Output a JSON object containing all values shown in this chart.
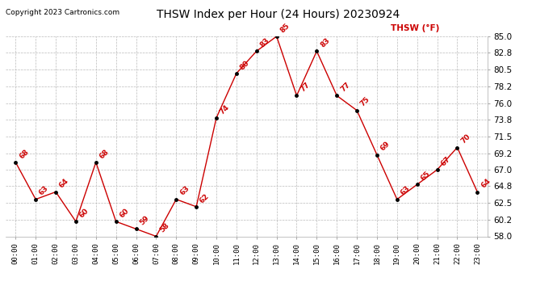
{
  "title": "THSW Index per Hour (24 Hours) 20230924",
  "copyright": "Copyright 2023 Cartronics.com",
  "legend_label": "THSW (°F)",
  "hours": [
    "00:00",
    "01:00",
    "02:00",
    "03:00",
    "04:00",
    "05:00",
    "06:00",
    "07:00",
    "08:00",
    "09:00",
    "10:00",
    "11:00",
    "12:00",
    "13:00",
    "14:00",
    "15:00",
    "16:00",
    "17:00",
    "18:00",
    "19:00",
    "20:00",
    "21:00",
    "22:00",
    "23:00"
  ],
  "values": [
    68,
    63,
    64,
    60,
    68,
    60,
    59,
    58,
    63,
    62,
    74,
    80,
    83,
    85,
    77,
    83,
    77,
    75,
    69,
    63,
    65,
    67,
    70,
    64
  ],
  "annotations": [
    "68",
    "63",
    "64",
    "60",
    "68",
    "60",
    "59",
    "58",
    "63",
    "62",
    "74",
    "80",
    "83",
    "85",
    "77",
    "83",
    "77",
    "75",
    "69",
    "63",
    "65",
    "67",
    "70",
    "64"
  ],
  "line_color": "#cc0000",
  "marker_color": "#000000",
  "grid_color": "#bbbbbb",
  "bg_color": "#ffffff",
  "title_color": "#000000",
  "copyright_color": "#000000",
  "legend_color": "#cc0000",
  "annotation_color": "#cc0000",
  "ylim_min": 58.0,
  "ylim_max": 85.0,
  "yticks": [
    58.0,
    60.2,
    62.5,
    64.8,
    67.0,
    69.2,
    71.5,
    73.8,
    76.0,
    78.2,
    80.5,
    82.8,
    85.0
  ]
}
